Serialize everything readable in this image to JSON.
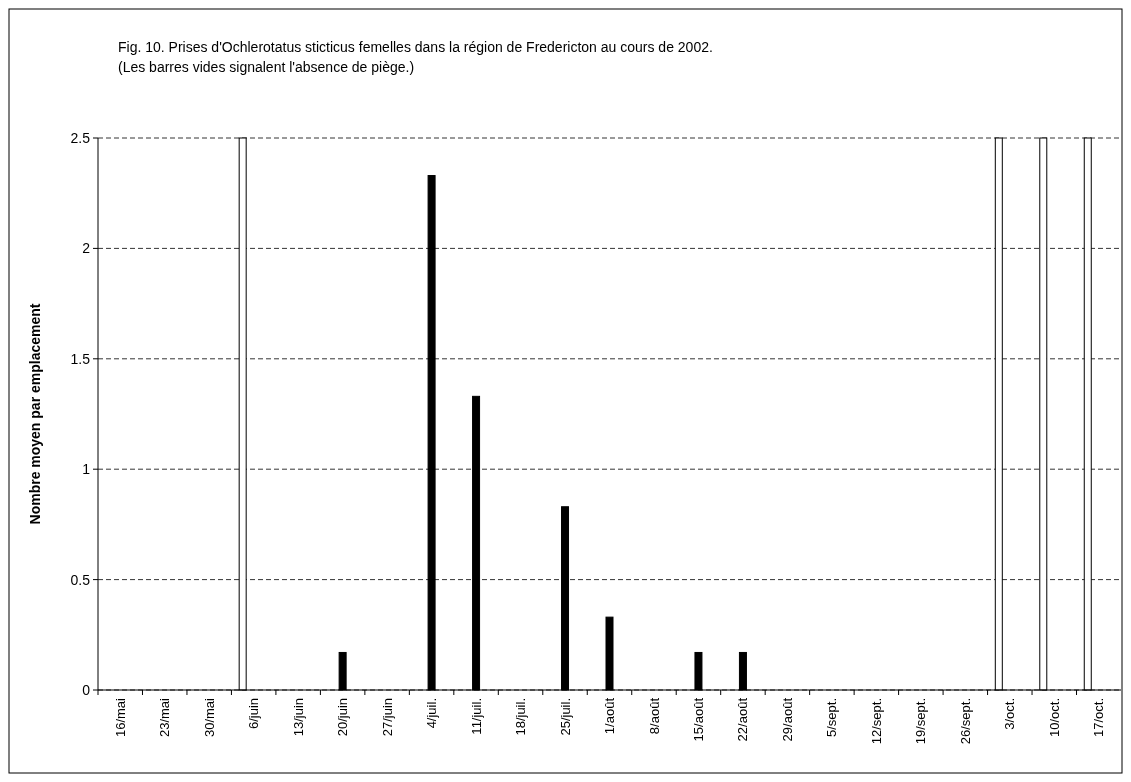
{
  "chart_data": {
    "type": "bar",
    "title": "Fig. 10. Prises d'Ochlerotatus sticticus femelles dans la région de Fredericton au cours de 2002.",
    "subtitle": "(Les barres vides signalent l'absence de piège.)",
    "ylabel": "Nombre moyen par emplacement",
    "categories": [
      "16/mai",
      "23/mai",
      "30/mai",
      "6/juin",
      "13/juin",
      "20/juin",
      "27/juin",
      "4/juil.",
      "11/juil.",
      "18/juil.",
      "25/juil.",
      "1/août",
      "8/août",
      "15/août",
      "22/août",
      "29/août",
      "5/sept.",
      "12/sept.",
      "19/sept.",
      "26/sept.",
      "3/oct.",
      "10/oct.",
      "17/oct."
    ],
    "series": [
      {
        "color": "#ffffff",
        "values": [
          null,
          null,
          null,
          2.5,
          null,
          null,
          null,
          null,
          null,
          null,
          null,
          null,
          null,
          null,
          null,
          null,
          null,
          null,
          null,
          null,
          2.5,
          2.5,
          2.5
        ]
      },
      {
        "color": "#000000",
        "values": [
          0,
          0,
          0,
          null,
          0,
          0.17,
          0,
          2.33,
          1.33,
          0,
          0.83,
          0.33,
          0,
          0.17,
          0.17,
          0,
          0,
          0,
          0,
          0,
          null,
          null,
          null
        ]
      }
    ],
    "ylim": [
      0,
      2.5
    ],
    "yticks": [
      0,
      0.5,
      1,
      1.5,
      2,
      2.5
    ],
    "grid": "y"
  }
}
